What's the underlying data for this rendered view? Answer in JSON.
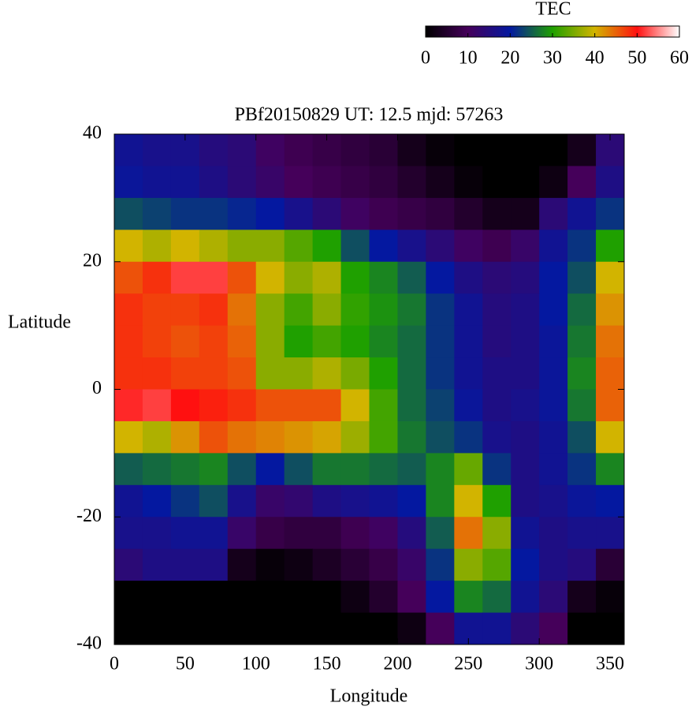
{
  "chart_data": {
    "type": "heatmap",
    "title": "PBf20150829  UT: 12.5  mjd: 57263",
    "xlabel": "Longitude",
    "ylabel": "Latitude",
    "x": [
      10,
      30,
      50,
      70,
      90,
      110,
      130,
      150,
      170,
      190,
      210,
      230,
      250,
      270,
      290,
      310,
      330,
      350
    ],
    "y": [
      37.5,
      32.5,
      27.5,
      22.5,
      17.5,
      12.5,
      7.5,
      2.5,
      -2.5,
      -7.5,
      -12.5,
      -17.5,
      -22.5,
      -27.5,
      -32.5,
      -37.5
    ],
    "z": [
      [
        18,
        17,
        17,
        15,
        14,
        11,
        9,
        8,
        7,
        6,
        3,
        1,
        0,
        0,
        0,
        0,
        3,
        14
      ],
      [
        19,
        18,
        18,
        16,
        14,
        12,
        10,
        9,
        8,
        7,
        5,
        3,
        1,
        0,
        0,
        2,
        10,
        16
      ],
      [
        24,
        23,
        22,
        22,
        21,
        20,
        17,
        14,
        11,
        9,
        8,
        7,
        5,
        3,
        3,
        14,
        18,
        22
      ],
      [
        40,
        38,
        40,
        38,
        36,
        36,
        33,
        30,
        24,
        20,
        17,
        14,
        11,
        9,
        12,
        18,
        22,
        30
      ],
      [
        46,
        48,
        52,
        52,
        46,
        40,
        36,
        38,
        30,
        28,
        25,
        20,
        16,
        14,
        15,
        20,
        24,
        40
      ],
      [
        48,
        47,
        47,
        48,
        44,
        36,
        32,
        36,
        31,
        29,
        27,
        22,
        18,
        15,
        16,
        20,
        26,
        42
      ],
      [
        48,
        47,
        46,
        47,
        45,
        36,
        30,
        32,
        30,
        28,
        26,
        22,
        18,
        15,
        16,
        19,
        27,
        44
      ],
      [
        48,
        48,
        47,
        47,
        46,
        36,
        36,
        38,
        35,
        30,
        26,
        22,
        18,
        16,
        16,
        19,
        28,
        45
      ],
      [
        51,
        52,
        50,
        49,
        48,
        46,
        46,
        46,
        40,
        32,
        26,
        23,
        19,
        16,
        17,
        19,
        27,
        45
      ],
      [
        40,
        38,
        42,
        46,
        44,
        43,
        42,
        41,
        37,
        32,
        27,
        24,
        22,
        17,
        16,
        18,
        24,
        40
      ],
      [
        25,
        26,
        27,
        28,
        24,
        20,
        24,
        27,
        27,
        26,
        25,
        28,
        34,
        22,
        16,
        18,
        22,
        28
      ],
      [
        18,
        20,
        22,
        24,
        17,
        12,
        13,
        16,
        17,
        18,
        20,
        28,
        40,
        30,
        16,
        17,
        19,
        20
      ],
      [
        17,
        17,
        18,
        18,
        12,
        8,
        7,
        7,
        9,
        11,
        15,
        25,
        44,
        36,
        18,
        16,
        17,
        17
      ],
      [
        14,
        16,
        16,
        16,
        3,
        1,
        2,
        4,
        6,
        8,
        12,
        22,
        36,
        33,
        20,
        16,
        15,
        6
      ],
      [
        0,
        0,
        0,
        0,
        0,
        0,
        0,
        0,
        2,
        5,
        10,
        20,
        28,
        26,
        18,
        14,
        3,
        1
      ],
      [
        0,
        0,
        0,
        0,
        0,
        0,
        0,
        0,
        0,
        0,
        2,
        10,
        18,
        18,
        14,
        10,
        0,
        0
      ]
    ],
    "xlim": [
      0,
      360
    ],
    "ylim": [
      -40,
      40
    ],
    "xticks": [
      0,
      50,
      100,
      150,
      200,
      250,
      300,
      350
    ],
    "yticks": [
      -40,
      -20,
      0,
      20,
      40
    ],
    "colorbar": {
      "label": "TEC",
      "clim": [
        0,
        60
      ],
      "ticks": [
        0,
        10,
        20,
        30,
        40,
        50,
        60
      ]
    },
    "colormap": [
      "#000000",
      "#45005a",
      "#0418a0",
      "#1fa000",
      "#d2b400",
      "#ff1010",
      "#ffffff"
    ]
  }
}
